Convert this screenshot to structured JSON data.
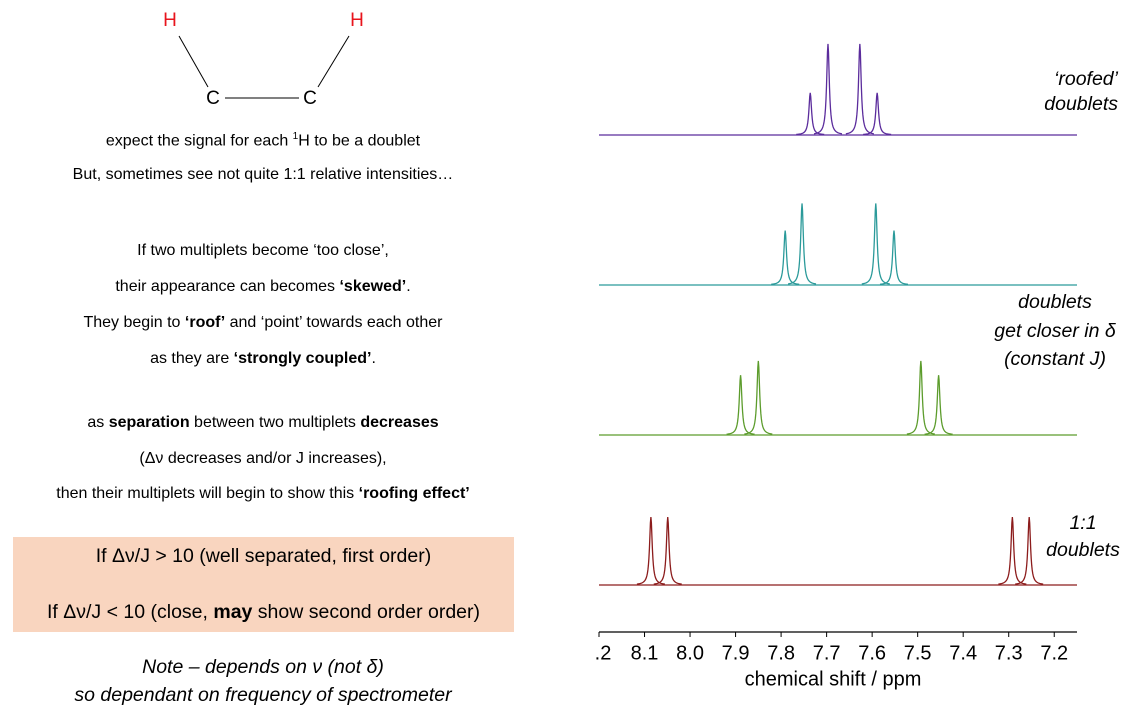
{
  "molecule": {
    "atoms": [
      {
        "label": "H",
        "color": "#e8141c"
      },
      {
        "label": "H",
        "color": "#e8141c"
      },
      {
        "label": "C",
        "color": "#000000"
      },
      {
        "label": "C",
        "color": "#000000"
      }
    ]
  },
  "notes": [
    [
      {
        "text": "expect the signal for each "
      },
      {
        "text": "1",
        "style": "sup"
      },
      {
        "text": "H to be a doublet"
      }
    ],
    [
      {
        "text": "But, sometimes see not quite 1:1 relative intensities…"
      }
    ],
    [
      {
        "text": "If two multiplets become ‘too close’,"
      }
    ],
    [
      {
        "text": "their appearance can becomes "
      },
      {
        "text": "‘skewed’",
        "style": "bold"
      },
      {
        "text": "."
      }
    ],
    [
      {
        "text": "They begin to "
      },
      {
        "text": "‘roof’",
        "style": "bold"
      },
      {
        "text": " and ‘point’ towards each other"
      }
    ],
    [
      {
        "text": "as they are "
      },
      {
        "text": "‘strongly coupled’",
        "style": "bold"
      },
      {
        "text": "."
      }
    ],
    [
      {
        "text": "as "
      },
      {
        "text": "separation",
        "style": "bold"
      },
      {
        "text": " between two multiplets "
      },
      {
        "text": "decreases",
        "style": "bold"
      }
    ],
    [
      {
        "text": "(Δν decreases and/or J increases),"
      }
    ],
    [
      {
        "text": "then their multiplets will begin to show this "
      },
      {
        "text": "‘roofing effect’",
        "style": "bold"
      }
    ]
  ],
  "box": [
    [
      {
        "text": "If Δν/J > 10 (well separated, first order)"
      }
    ],
    [
      {
        "text": "If Δν/J < 10 (close, "
      },
      {
        "text": "may",
        "style": "bold"
      },
      {
        "text": " show second order order)"
      }
    ]
  ],
  "footnote": [
    [
      {
        "text": "Note – depends on ν (not δ)"
      }
    ],
    [
      {
        "text": "so dependant on frequency of spectrometer"
      }
    ]
  ],
  "chart_data": {
    "type": "spectrum",
    "x_label": "chemical shift / ppm",
    "xlim": [
      8.2,
      7.15
    ],
    "xticks": [
      {
        "value": 8.2,
        "label": ".2"
      },
      8.1,
      {
        "value": 8,
        "label": "8.0"
      },
      7.9,
      7.8,
      7.7,
      7.6,
      7.5,
      7.4,
      7.3,
      7.2
    ],
    "series": [
      {
        "color": "#5b2c9c",
        "x": [
          7.736,
          7.697,
          7.627,
          7.589
        ],
        "values": [
          0.62,
          1.34,
          1.34,
          0.62
        ]
      },
      {
        "color": "#2b9a9a",
        "x": [
          7.791,
          7.754,
          7.592,
          7.552
        ],
        "values": [
          0.8,
          1.2,
          1.2,
          0.8
        ]
      },
      {
        "color": "#5c9c2c",
        "x": [
          7.889,
          7.85,
          7.493,
          7.454
        ],
        "values": [
          0.88,
          1.09,
          1.09,
          0.88
        ]
      },
      {
        "color": "#8c1c1c",
        "x": [
          8.086,
          8.049,
          7.292,
          7.255
        ],
        "values": [
          1,
          1,
          1,
          1
        ]
      }
    ],
    "annotations": [
      {
        "lines": [
          "‘roofed’",
          "doublets"
        ]
      },
      {
        "lines": [
          "doublets",
          "get closer in δ",
          "(constant J)"
        ]
      },
      {
        "lines": [
          "1:1",
          "doublets"
        ]
      }
    ]
  }
}
